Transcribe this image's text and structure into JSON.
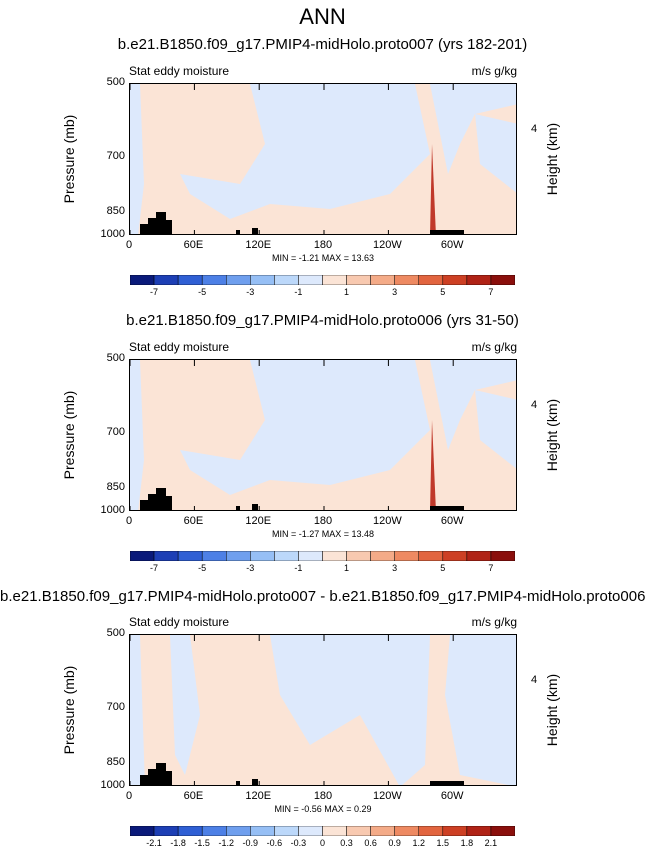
{
  "title": "ANN",
  "chart_data": [
    {
      "type": "heatmap",
      "title": "b.e21.B1850.f09_g17.PMIP4-midHolo.proto007 (yrs 182-201)",
      "left_subtitle": "Stat eddy moisture",
      "right_subtitle": "m/s g/kg",
      "ylabel": "Pressure (mb)",
      "right_label": "Height (km)",
      "yticks": [
        "500",
        "700",
        "850",
        "1000"
      ],
      "right_ticks": [
        "4"
      ],
      "xticks": [
        "0",
        "60E",
        "120E",
        "180",
        "120W",
        "60W"
      ],
      "min_max": "MIN = -1.21  MAX = 13.63",
      "colorbar_labels": [
        "-7",
        "-5",
        "-3",
        "-1",
        "1",
        "3",
        "5",
        "7"
      ],
      "colorbar_colors": [
        "#0a1a7a",
        "#1d3fb5",
        "#2f5fd4",
        "#4d80e6",
        "#6f9fee",
        "#96bff5",
        "#bcd8fa",
        "#dde9fc",
        "#fbe4d6",
        "#f8c9b0",
        "#f4ab88",
        "#ee8a62",
        "#e2653f",
        "#cd4024",
        "#b02316",
        "#8a0f0c"
      ]
    },
    {
      "type": "heatmap",
      "title": "b.e21.B1850.f09_g17.PMIP4-midHolo.proto006 (yrs 31-50)",
      "left_subtitle": "Stat eddy moisture",
      "right_subtitle": "m/s g/kg",
      "ylabel": "Pressure (mb)",
      "right_label": "Height (km)",
      "yticks": [
        "500",
        "700",
        "850",
        "1000"
      ],
      "right_ticks": [
        "4"
      ],
      "xticks": [
        "0",
        "60E",
        "120E",
        "180",
        "120W",
        "60W"
      ],
      "min_max": "MIN = -1.27  MAX = 13.48",
      "colorbar_labels": [
        "-7",
        "-5",
        "-3",
        "-1",
        "1",
        "3",
        "5",
        "7"
      ],
      "colorbar_colors": [
        "#0a1a7a",
        "#1d3fb5",
        "#2f5fd4",
        "#4d80e6",
        "#6f9fee",
        "#96bff5",
        "#bcd8fa",
        "#dde9fc",
        "#fbe4d6",
        "#f8c9b0",
        "#f4ab88",
        "#ee8a62",
        "#e2653f",
        "#cd4024",
        "#b02316",
        "#8a0f0c"
      ]
    },
    {
      "type": "heatmap",
      "title": "b.e21.B1850.f09_g17.PMIP4-midHolo.proto007 - b.e21.B1850.f09_g17.PMIP4-midHolo.proto006",
      "left_subtitle": "Stat eddy moisture",
      "right_subtitle": "m/s g/kg",
      "ylabel": "Pressure (mb)",
      "right_label": "Height (km)",
      "yticks": [
        "500",
        "700",
        "850",
        "1000"
      ],
      "right_ticks": [
        "4"
      ],
      "xticks": [
        "0",
        "60E",
        "120E",
        "180",
        "120W",
        "60W"
      ],
      "min_max": "MIN = -0.56  MAX =  0.29",
      "colorbar_labels": [
        "-2.1",
        "-1.8",
        "-1.5",
        "-1.2",
        "-0.9",
        "-0.6",
        "-0.3",
        "0",
        "0.3",
        "0.6",
        "0.9",
        "1.2",
        "1.5",
        "1.8",
        "2.1"
      ],
      "colorbar_colors": [
        "#0a1a7a",
        "#1d3fb5",
        "#2f5fd4",
        "#4d80e6",
        "#6f9fee",
        "#96bff5",
        "#bcd8fa",
        "#dde9fc",
        "#fbe4d6",
        "#f8c9b0",
        "#f4ab88",
        "#ee8a62",
        "#e2653f",
        "#cd4024",
        "#b02316",
        "#8a0f0c"
      ]
    }
  ]
}
